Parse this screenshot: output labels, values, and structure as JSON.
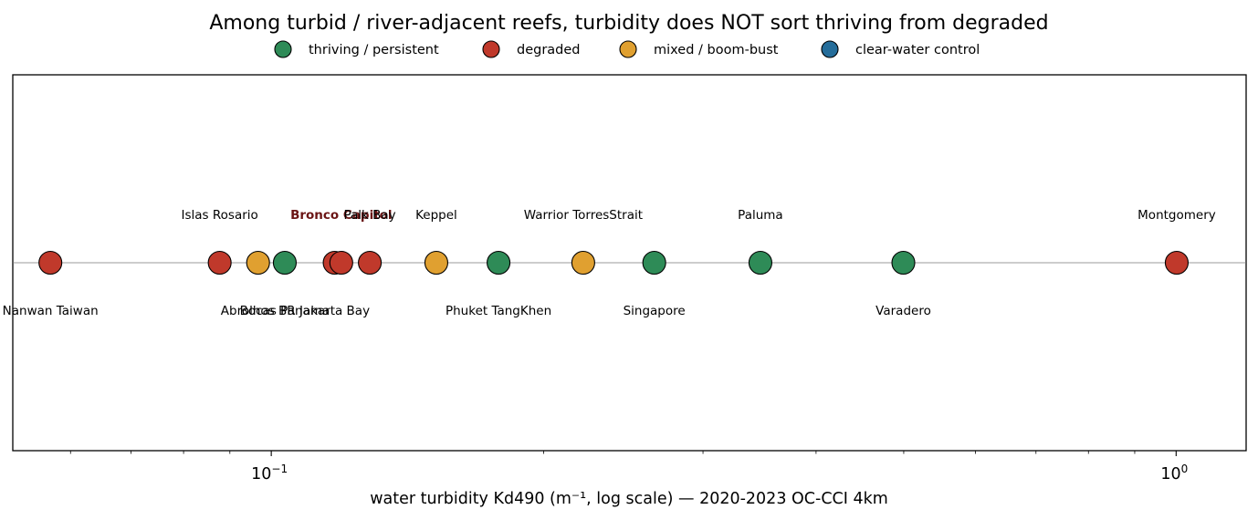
{
  "chart_data": {
    "type": "scatter",
    "title": "Among turbid / river-adjacent reefs, turbidity does NOT sort thriving from degraded",
    "xlabel": "water turbidity  Kd490 (m⁻¹, log scale) — 2020-2023 OC-CCI 4km",
    "ylabel": "",
    "x_scale": "log",
    "xlim": [
      0.0518,
      1.195
    ],
    "ylim": [
      -1,
      1
    ],
    "x_ticks": [
      {
        "value": 0.1,
        "base": "10",
        "exp": "−1"
      },
      {
        "value": 1.0,
        "base": "10",
        "exp": "0"
      }
    ],
    "grid": false,
    "legend_position": "top",
    "categories": [
      {
        "key": "thriving",
        "name": "thriving / persistent",
        "color": "#2e8b57"
      },
      {
        "key": "degraded",
        "name": "degraded",
        "color": "#c0392b"
      },
      {
        "key": "mixed",
        "name": "mixed / boom-bust",
        "color": "#e0a030"
      },
      {
        "key": "clear",
        "name": "clear-water control",
        "color": "#256d9a"
      }
    ],
    "points": [
      {
        "label": "Nanwan Taiwan",
        "x": 0.057,
        "category": "degraded",
        "label_side": "below"
      },
      {
        "label": "Islas Rosario",
        "x": 0.0877,
        "category": "degraded",
        "label_side": "above"
      },
      {
        "label": "Abrolhos BR",
        "x": 0.0967,
        "category": "mixed",
        "label_side": "below"
      },
      {
        "label": "Bocas Panama",
        "x": 0.1035,
        "category": "thriving",
        "label_side": "below"
      },
      {
        "label": "Jakarta Bay",
        "x": 0.1175,
        "category": "degraded",
        "label_side": "below"
      },
      {
        "label": "Bronco Capitol",
        "x": 0.1195,
        "category": "degraded",
        "label_side": "above",
        "highlight": true
      },
      {
        "label": "Palk Bay",
        "x": 0.1285,
        "category": "degraded",
        "label_side": "above"
      },
      {
        "label": "Keppel",
        "x": 0.1522,
        "category": "mixed",
        "label_side": "above"
      },
      {
        "label": "Phuket TangKhen",
        "x": 0.1783,
        "category": "thriving",
        "label_side": "below"
      },
      {
        "label": "Warrior TorresStrait",
        "x": 0.2212,
        "category": "mixed",
        "label_side": "above"
      },
      {
        "label": "Singapore",
        "x": 0.265,
        "category": "thriving",
        "label_side": "below"
      },
      {
        "label": "Paluma",
        "x": 0.3472,
        "category": "thriving",
        "label_side": "above"
      },
      {
        "label": "Varadero",
        "x": 0.4995,
        "category": "thriving",
        "label_side": "below"
      },
      {
        "label": "Montgomery",
        "x": 1.0015,
        "category": "degraded",
        "label_side": "above"
      }
    ],
    "highlight_label_color": "#6b1515"
  }
}
